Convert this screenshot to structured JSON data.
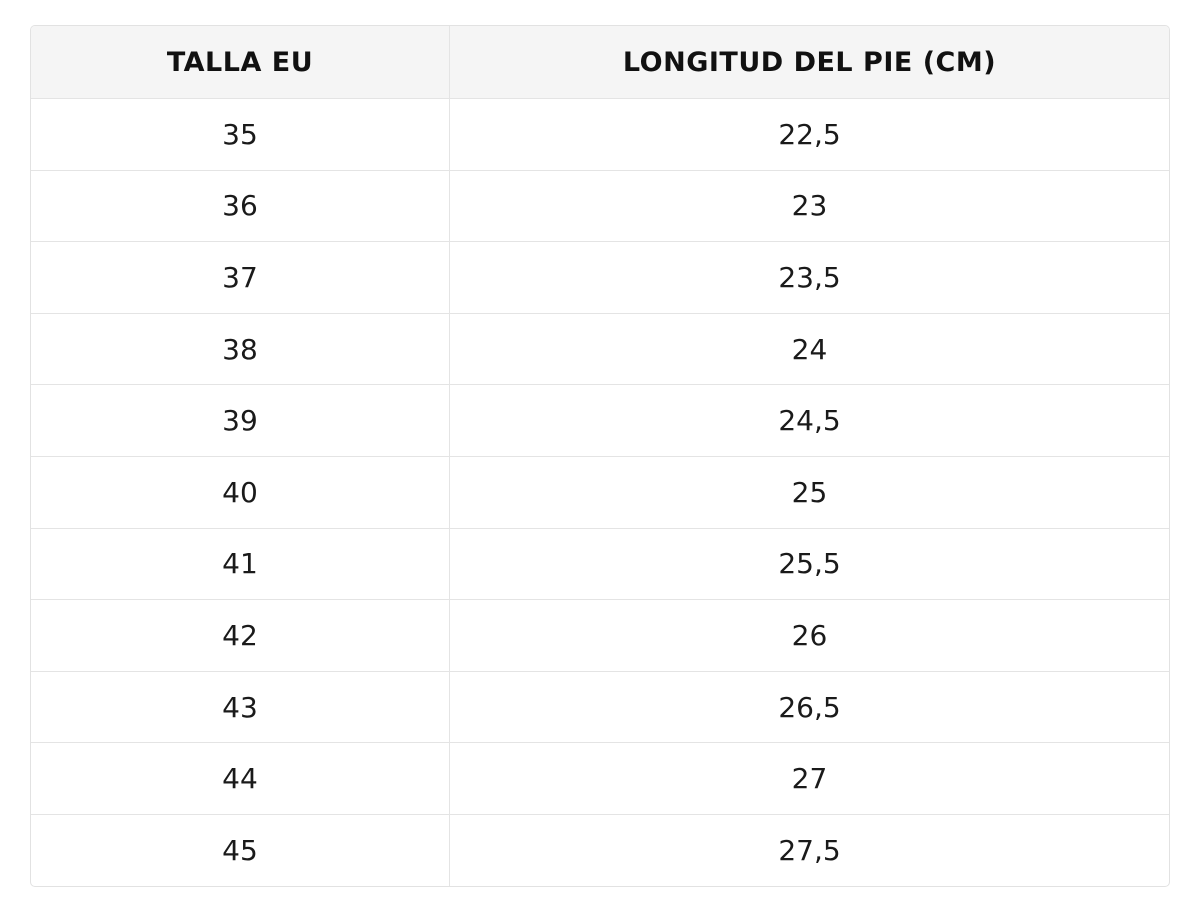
{
  "table": {
    "header": [
      "TALLA EU",
      "LONGITUD DEL PIE (CM)"
    ],
    "rows": [
      [
        "35",
        "22,5"
      ],
      [
        "36",
        "23"
      ],
      [
        "37",
        "23,5"
      ],
      [
        "38",
        "24"
      ],
      [
        "39",
        "24,5"
      ],
      [
        "40",
        "25"
      ],
      [
        "41",
        "25,5"
      ],
      [
        "42",
        "26"
      ],
      [
        "43",
        "26,5"
      ],
      [
        "44",
        "27"
      ],
      [
        "45",
        "27,5"
      ]
    ]
  }
}
